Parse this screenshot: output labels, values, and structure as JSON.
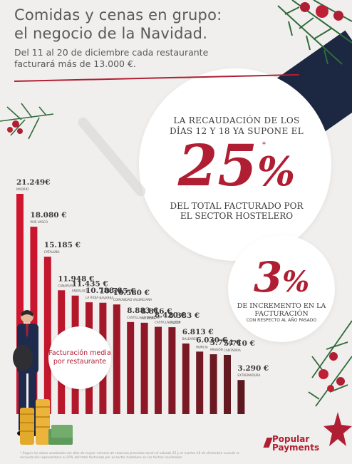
{
  "header": {
    "title_line1": "Comidas y cenas en grupo:",
    "title_line2": "el negocio de la Navidad.",
    "subtitle": "Del 11 al 20 de diciembre cada restaurante facturará más de 13.000 €."
  },
  "stats": {
    "first": {
      "heading": "LA RECAUDACIÓN DE LOS DÍAS 12 Y 18 YA SUPONE EL",
      "value": "25",
      "unit": "%",
      "marker": "*",
      "footer": "DEL TOTAL FACTURADO POR EL SECTOR HOSTELERO"
    },
    "second": {
      "value": "3",
      "unit": "%",
      "text": "DE INCREMENTO EN LA FACTURACIÓN",
      "small": "CON RESPECTO AL AÑO PASADO"
    }
  },
  "badge": {
    "line1": "Facturación media",
    "line2": "por restaurante"
  },
  "chart_data": {
    "type": "bar",
    "categories": [
      "MADRID",
      "PAÍS VASCO",
      "CATALUÑA",
      "CANARIAS",
      "ANDALUCÍA",
      "LA RIOJA",
      "NAVARRA",
      "COMUNIDAD VALENCIANA",
      "CASTILLA LA MANCHA",
      "ASTURIAS",
      "CASTILLA Y LEÓN",
      "GALICIA",
      "BALEARES",
      "MURCIA",
      "ARAGÓN",
      "CANTABRIA",
      "EXTREMADURA"
    ],
    "values": [
      21249,
      18080,
      15185,
      11948,
      11435,
      10788,
      10745,
      10580,
      8883,
      8816,
      8420,
      8383,
      6813,
      6030,
      5774,
      5710,
      3290
    ],
    "value_labels": [
      "21.249€",
      "18.080 €",
      "15.185 €",
      "11.948 €",
      "11.435 €",
      "10.788 €",
      "10.745 €",
      "10.580 €",
      "8.883 €",
      "8.816 €",
      "8.420 €",
      "8.383 €",
      "6.813 €",
      "6.030 €",
      "5.774 €",
      "5.710 €",
      "3.290 €"
    ],
    "ylim": [
      0,
      21249
    ],
    "colors": {
      "start": "#d0162f",
      "end": "#5c1a20"
    }
  },
  "footer": {
    "footnote": "* Según los datos analizados los días de mayor número de reservas previstos serán el sábado 12 y el martes 18 de diciembre cuando la recaudación representará el 25% del total facturado por el sector hostelero en las fechas analizadas.",
    "logo_line1": "Popular",
    "logo_line2": "Payments"
  }
}
